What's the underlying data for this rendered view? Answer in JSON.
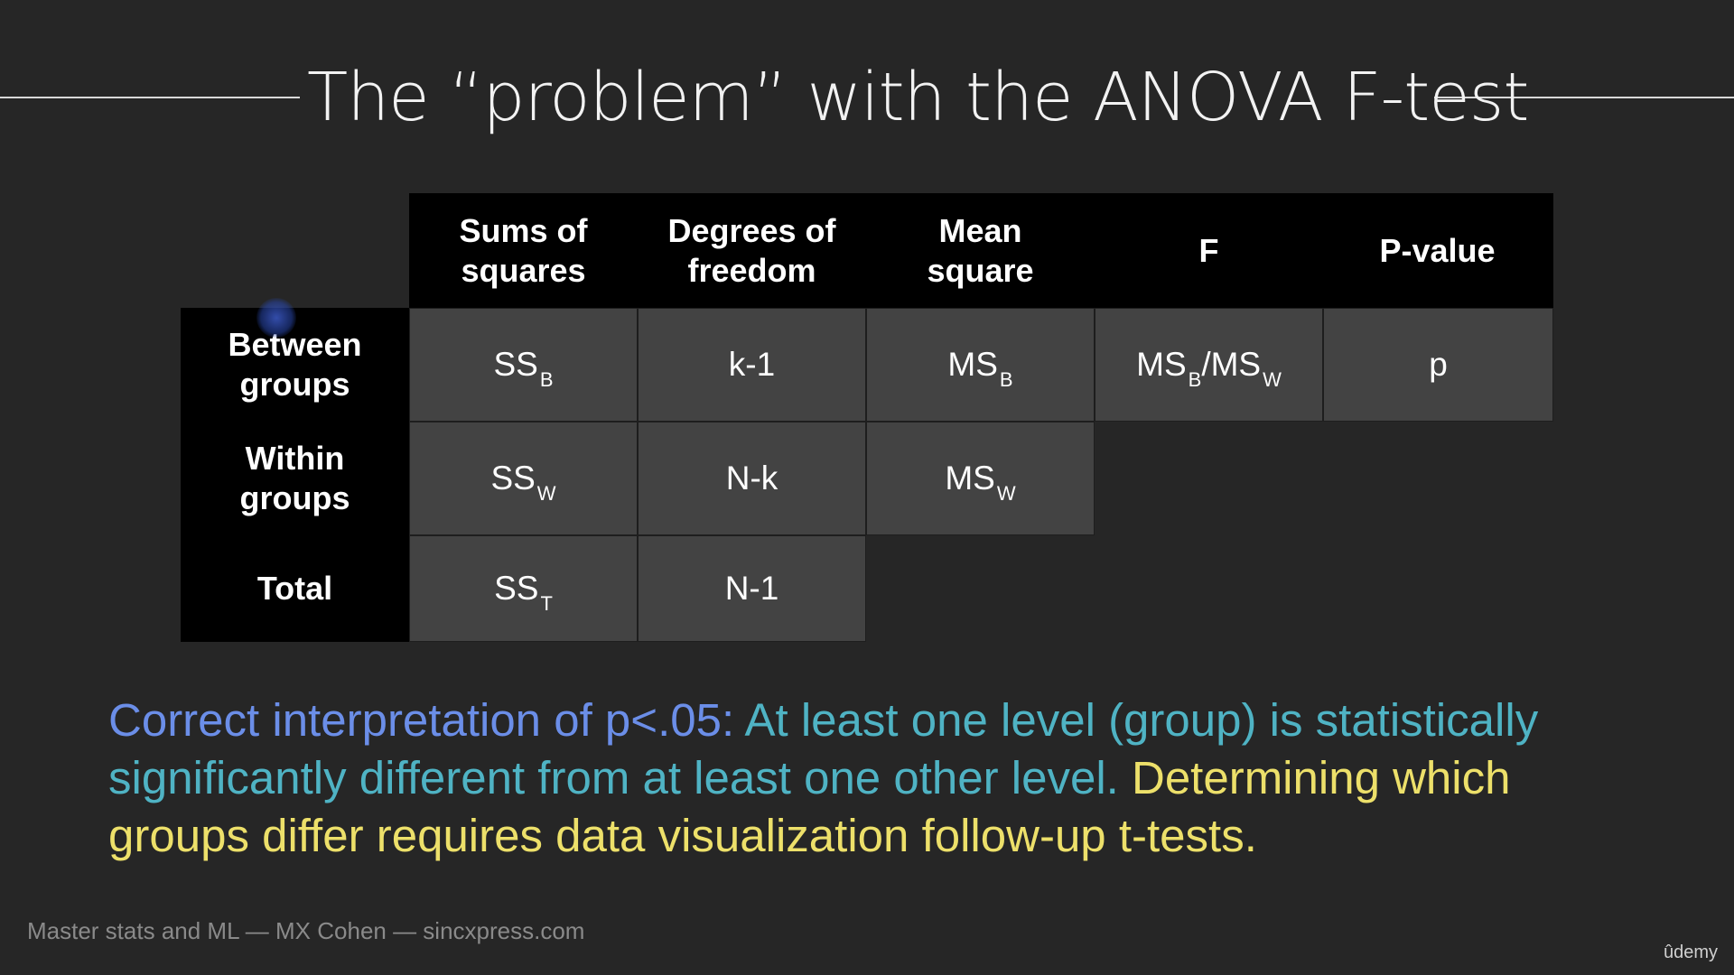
{
  "slide": {
    "title": "The “problem” with the ANOVA F-test"
  },
  "table": {
    "columns": [
      "Sums of squares",
      "Degrees of freedom",
      "Mean square",
      "F",
      "P-value"
    ],
    "column_lines": [
      [
        "Sums of",
        "squares"
      ],
      [
        "Degrees of",
        "freedom"
      ],
      [
        "Mean",
        "square"
      ],
      [
        "F"
      ],
      [
        "P-value"
      ]
    ],
    "rows": [
      {
        "label_lines": [
          "Between",
          "groups"
        ],
        "cells": [
          {
            "base": "SS",
            "sub": "B"
          },
          {
            "text": "k-1"
          },
          {
            "base": "MS",
            "sub": "B"
          },
          {
            "f_parts": [
              "MS",
              "B",
              "/MS",
              "W"
            ]
          },
          {
            "text": "p"
          }
        ]
      },
      {
        "label_lines": [
          "Within",
          "groups"
        ],
        "cells": [
          {
            "base": "SS",
            "sub": "W"
          },
          {
            "text": "N-k"
          },
          {
            "base": "MS",
            "sub": "W"
          }
        ]
      },
      {
        "label_lines": [
          "Total"
        ],
        "cells": [
          {
            "base": "SS",
            "sub": "T"
          },
          {
            "text": "N-1"
          }
        ]
      }
    ]
  },
  "note": {
    "part1": "Correct interpretation of p<.05: ",
    "part2": "At least one level (group) is statistically significantly different from at least one other level. ",
    "part3": "Determining which groups differ requires data visualization follow-up t-tests.",
    "colors": {
      "part1": "#6b8ee8",
      "part2": "#4fb3c4",
      "part3": "#ede06a"
    }
  },
  "footer": {
    "credit": "Master stats and ML — MX Cohen — sincxpress.com",
    "brand": "ûdemy"
  },
  "colors": {
    "background": "#262626",
    "header_bg": "#000000",
    "cell_bg": "#434343"
  }
}
